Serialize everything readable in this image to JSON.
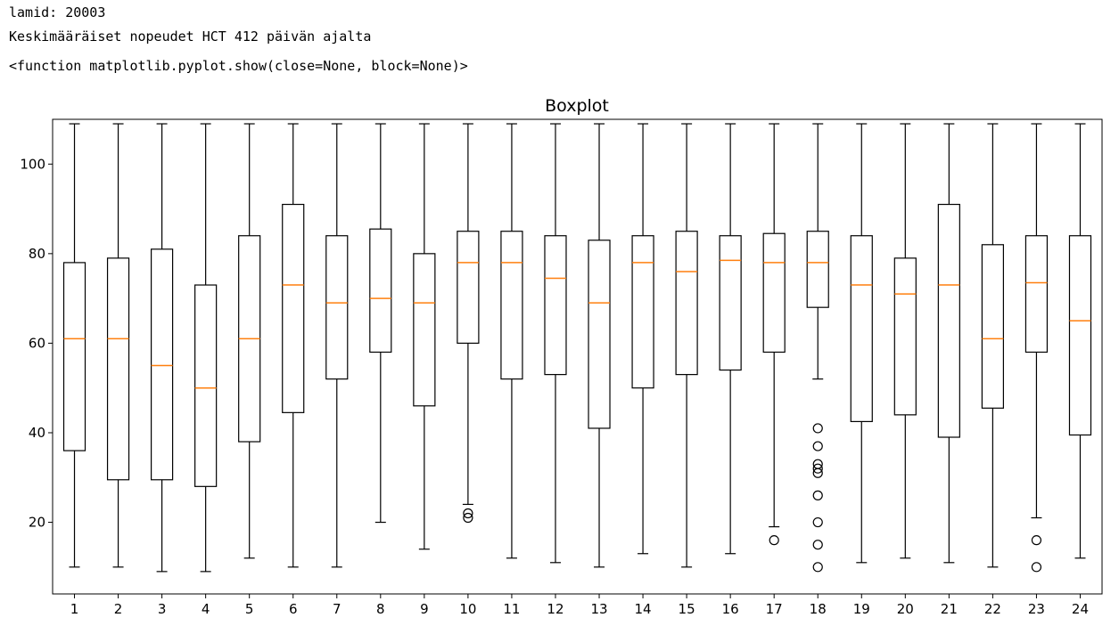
{
  "output": {
    "line1": "lamid: 20003",
    "line2": "Keskimääräiset nopeudet HCT 412 päivän ajalta",
    "line3": "<function matplotlib.pyplot.show(close=None, block=None)>"
  },
  "chart_data": {
    "type": "boxplot",
    "title": "Boxplot",
    "xlabel": "",
    "ylabel": "",
    "ylim": [
      4,
      110
    ],
    "yticks": [
      20,
      40,
      60,
      80,
      100
    ],
    "categories": [
      "1",
      "2",
      "3",
      "4",
      "5",
      "6",
      "7",
      "8",
      "9",
      "10",
      "11",
      "12",
      "13",
      "14",
      "15",
      "16",
      "17",
      "18",
      "19",
      "20",
      "21",
      "22",
      "23",
      "24"
    ],
    "boxes": [
      {
        "min": 10,
        "q1": 36,
        "median": 61,
        "q3": 78,
        "max": 109,
        "outliers": []
      },
      {
        "min": 10,
        "q1": 29.5,
        "median": 61,
        "q3": 79,
        "max": 109,
        "outliers": []
      },
      {
        "min": 9,
        "q1": 29.5,
        "median": 55,
        "q3": 81,
        "max": 109,
        "outliers": []
      },
      {
        "min": 9,
        "q1": 28,
        "median": 50,
        "q3": 73,
        "max": 109,
        "outliers": []
      },
      {
        "min": 12,
        "q1": 38,
        "median": 61,
        "q3": 84,
        "max": 109,
        "outliers": []
      },
      {
        "min": 10,
        "q1": 44.5,
        "median": 73,
        "q3": 91,
        "max": 109,
        "outliers": []
      },
      {
        "min": 10,
        "q1": 52,
        "median": 69,
        "q3": 84,
        "max": 109,
        "outliers": []
      },
      {
        "min": 20,
        "q1": 58,
        "median": 70,
        "q3": 85.5,
        "max": 109,
        "outliers": []
      },
      {
        "min": 14,
        "q1": 46,
        "median": 69,
        "q3": 80,
        "max": 109,
        "outliers": []
      },
      {
        "min": 24,
        "q1": 60,
        "median": 78,
        "q3": 85,
        "max": 109,
        "outliers": [
          22,
          21
        ]
      },
      {
        "min": 12,
        "q1": 52,
        "median": 78,
        "q3": 85,
        "max": 109,
        "outliers": []
      },
      {
        "min": 11,
        "q1": 53,
        "median": 74.5,
        "q3": 84,
        "max": 109,
        "outliers": []
      },
      {
        "min": 10,
        "q1": 41,
        "median": 69,
        "q3": 83,
        "max": 109,
        "outliers": []
      },
      {
        "min": 13,
        "q1": 50,
        "median": 78,
        "q3": 84,
        "max": 109,
        "outliers": []
      },
      {
        "min": 10,
        "q1": 53,
        "median": 76,
        "q3": 85,
        "max": 109,
        "outliers": []
      },
      {
        "min": 13,
        "q1": 54,
        "median": 78.5,
        "q3": 84,
        "max": 109,
        "outliers": []
      },
      {
        "min": 19,
        "q1": 58,
        "median": 78,
        "q3": 84.5,
        "max": 109,
        "outliers": [
          16
        ]
      },
      {
        "min": 52,
        "q1": 68,
        "median": 78,
        "q3": 85,
        "max": 109,
        "outliers": [
          41,
          37,
          33,
          32,
          31,
          26,
          20,
          15,
          10
        ]
      },
      {
        "min": 11,
        "q1": 42.5,
        "median": 73,
        "q3": 84,
        "max": 109,
        "outliers": []
      },
      {
        "min": 12,
        "q1": 44,
        "median": 71,
        "q3": 79,
        "max": 109,
        "outliers": []
      },
      {
        "min": 11,
        "q1": 39,
        "median": 73,
        "q3": 91,
        "max": 109,
        "outliers": []
      },
      {
        "min": 10,
        "q1": 45.5,
        "median": 61,
        "q3": 82,
        "max": 109,
        "outliers": []
      },
      {
        "min": 21,
        "q1": 58,
        "median": 73.5,
        "q3": 84,
        "max": 109,
        "outliers": [
          16,
          10
        ]
      },
      {
        "min": 12,
        "q1": 39.5,
        "median": 65,
        "q3": 84,
        "max": 109,
        "outliers": []
      }
    ],
    "grid": false,
    "colors": {
      "box": "#000000",
      "median": "#ff7f0e",
      "outlier": "#000000"
    }
  }
}
